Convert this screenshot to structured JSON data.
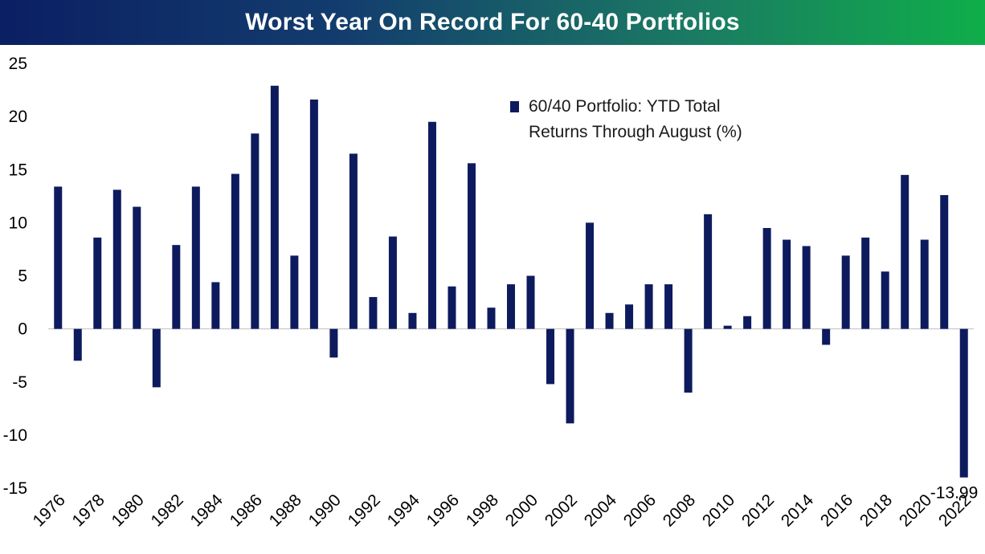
{
  "title": "Worst Year On Record For 60-40 Portfolios",
  "colors": {
    "bar": "#0d1b5e",
    "axis": "#bfbfbf"
  },
  "chart_data": {
    "type": "bar",
    "title": "Worst Year On Record For 60-40 Portfolios",
    "xlabel": "",
    "ylabel": "",
    "ylim": [
      -15,
      25
    ],
    "yticks": [
      25,
      20,
      15,
      10,
      5,
      0,
      -5,
      -10,
      -15
    ],
    "xtick_labels": [
      "1976",
      "1978",
      "1980",
      "1982",
      "1984",
      "1986",
      "1988",
      "1990",
      "1992",
      "1994",
      "1996",
      "1998",
      "2000",
      "2002",
      "2004",
      "2006",
      "2008",
      "2010",
      "2012",
      "2014",
      "2016",
      "2018",
      "2020",
      "2022"
    ],
    "grid": false,
    "legend": {
      "position": "top-right",
      "entries": [
        "60/40 Portfolio: YTD Total",
        "Returns Through August (%)"
      ]
    },
    "categories": [
      "1976",
      "1977",
      "1978",
      "1979",
      "1980",
      "1981",
      "1982",
      "1983",
      "1984",
      "1985",
      "1986",
      "1987",
      "1988",
      "1989",
      "1990",
      "1991",
      "1992",
      "1993",
      "1994",
      "1995",
      "1996",
      "1997",
      "1998",
      "1999",
      "2000",
      "2001",
      "2002",
      "2003",
      "2004",
      "2005",
      "2006",
      "2007",
      "2008",
      "2009",
      "2010",
      "2011",
      "2012",
      "2013",
      "2014",
      "2015",
      "2016",
      "2017",
      "2018",
      "2019",
      "2020",
      "2021",
      "2022"
    ],
    "series": [
      {
        "name": "60/40 Portfolio: YTD Total Returns Through August (%)",
        "values": [
          13.4,
          -3.0,
          8.6,
          13.1,
          11.5,
          -5.5,
          7.9,
          13.4,
          4.4,
          14.6,
          18.4,
          22.9,
          6.9,
          21.6,
          -2.7,
          16.5,
          3.0,
          8.7,
          1.5,
          19.5,
          4.0,
          15.6,
          2.0,
          4.2,
          5.0,
          -5.2,
          -8.9,
          10.0,
          1.5,
          2.3,
          4.2,
          4.2,
          -6.0,
          10.8,
          0.3,
          1.2,
          9.5,
          8.4,
          7.8,
          -1.5,
          6.9,
          8.6,
          5.4,
          14.5,
          8.4,
          12.6,
          -13.99
        ]
      }
    ],
    "data_labels": [
      {
        "category": "2022",
        "text": "-13.99"
      }
    ]
  }
}
